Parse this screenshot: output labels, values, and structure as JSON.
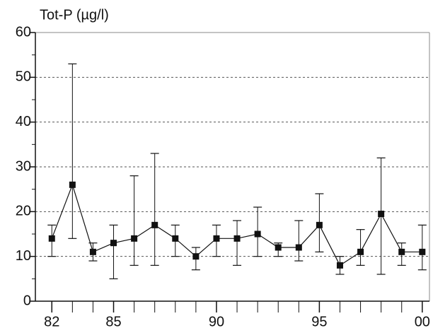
{
  "chart_data": {
    "type": "line",
    "title": "Tot-P (µg/l)",
    "x": [
      82,
      83,
      84,
      85,
      86,
      87,
      88,
      89,
      90,
      91,
      92,
      93,
      94,
      95,
      96,
      97,
      98,
      99,
      100
    ],
    "series": [
      {
        "color": "#111111",
        "values": [
          14,
          26,
          11,
          13,
          14,
          17,
          14,
          10,
          14,
          14,
          15,
          12,
          12,
          17,
          8,
          11,
          19.5,
          11,
          11
        ],
        "low": [
          10,
          14,
          9,
          5,
          8,
          8,
          10,
          7,
          10,
          8,
          10,
          10,
          9,
          11,
          6,
          8,
          6,
          8,
          7
        ],
        "high": [
          17,
          53,
          13,
          17,
          28,
          33,
          17,
          12,
          17,
          18,
          21,
          13,
          18,
          24,
          10,
          16,
          32,
          13,
          17
        ]
      }
    ],
    "xlim": [
      81.2,
      100.35
    ],
    "xticks": [
      82,
      85,
      90,
      95,
      {
        "value": 100,
        "label": "00"
      }
    ],
    "xminorticks": [
      83,
      84,
      86,
      87,
      88,
      89,
      91,
      92,
      93,
      94,
      96,
      97,
      98,
      99
    ],
    "ylim": [
      0,
      60
    ],
    "yticks": [
      0,
      10,
      20,
      30,
      40,
      50,
      60
    ],
    "yminorticks": [
      5,
      15,
      25,
      35,
      45,
      55
    ],
    "grid": true
  }
}
